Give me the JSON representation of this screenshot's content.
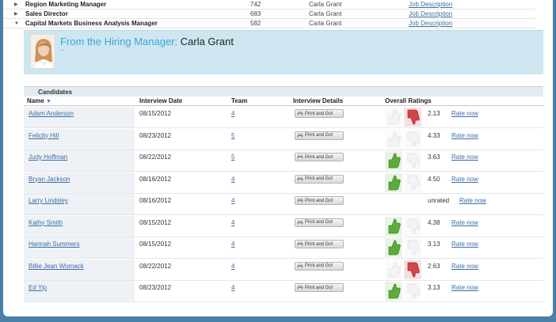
{
  "requisitions": [
    {
      "title": "Region Marketing Manager",
      "number": "742",
      "hiring_manager": "Carla Grant",
      "job_desc": "Job Description",
      "expanded": false
    },
    {
      "title": "Sales Director",
      "number": "683",
      "hiring_manager": "Carla Grant",
      "job_desc": "Job Description",
      "expanded": false
    },
    {
      "title": "Capital Markets Business Analysis Manager",
      "number": "582",
      "hiring_manager": "Carla Grant",
      "job_desc": "Job Description",
      "expanded": true
    }
  ],
  "manager": {
    "label": "From the Hiring Manager:",
    "name": "Carla Grant"
  },
  "candidates_section": {
    "title": "Candidates",
    "columns": {
      "name": "Name",
      "date": "Interview Date",
      "team": "Team",
      "details": "Interview Details",
      "ratings": "Overall Ratings"
    },
    "print_label": "Print and Go!",
    "rate_label": "Rate now"
  },
  "candidates": [
    {
      "name": "Adam Anderson",
      "date": "08/15/2012",
      "team": "4",
      "score": "2.13",
      "thumb": "down"
    },
    {
      "name": "Felicity Hill",
      "date": "08/23/2012",
      "team": "5",
      "score": "4.33",
      "thumb": "none"
    },
    {
      "name": "Judy Hoffman",
      "date": "08/22/2012",
      "team": "5",
      "score": "3.63",
      "thumb": "up"
    },
    {
      "name": "Bryan Jackson",
      "date": "08/16/2012",
      "team": "4",
      "score": "4.50",
      "thumb": "up"
    },
    {
      "name": "Larry Lindsley",
      "date": "08/16/2012",
      "team": "4",
      "score": "unrated",
      "thumb": "hidden"
    },
    {
      "name": "Kathy Smith",
      "date": "08/15/2012",
      "team": "4",
      "score": "4.38",
      "thumb": "up"
    },
    {
      "name": "Hannah Summers",
      "date": "08/15/2012",
      "team": "4",
      "score": "3.13",
      "thumb": "up"
    },
    {
      "name": "Billie Jean Womack",
      "date": "08/22/2012",
      "team": "4",
      "score": "2.63",
      "thumb": "down"
    },
    {
      "name": "Ed Yip",
      "date": "08/23/2012",
      "team": "4",
      "score": "3.13",
      "thumb": "up"
    }
  ],
  "colors": {
    "link": "#3b6ea5",
    "manager_label": "#3aa6d8",
    "panel_bg": "#cde6f0",
    "thumb_up": "#5cab3c",
    "thumb_down": "#d6444b"
  }
}
